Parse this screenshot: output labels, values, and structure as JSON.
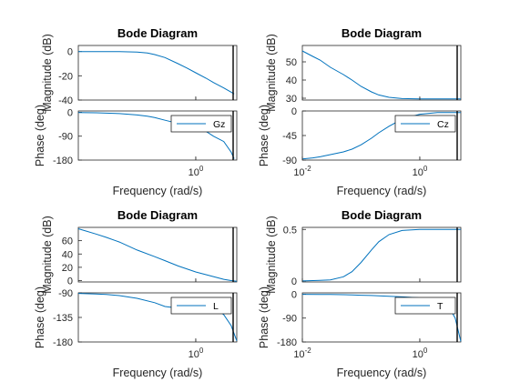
{
  "colors": {
    "line": "#0072BD",
    "axis": "#262626",
    "bg": "#ffffff"
  },
  "chart_data": [
    {
      "type": "line",
      "title": "Bode Diagram",
      "xlabel": "Frequency  (rad/s)",
      "xscale": "log",
      "xlim": [
        0.01,
        5
      ],
      "x_ticks": [],
      "x_tick_labels": [],
      "minor_ticks": [
        1
      ],
      "mag_label": "Magnitude (dB)",
      "phase_label": "Phase (deg)",
      "mag_ylim": [
        -40,
        5
      ],
      "mag_ticks": [
        0,
        -20,
        -40
      ],
      "mag_tick_labels": [
        "0",
        "-20",
        "-40"
      ],
      "phase_ylim": [
        -180,
        5
      ],
      "phase_ticks": [
        0,
        -90,
        -180
      ],
      "phase_tick_labels": [
        "0",
        "-90",
        "-180"
      ],
      "legend": "Gz",
      "legend_pos": "top-right",
      "x": [
        0.01,
        0.02,
        0.05,
        0.1,
        0.15,
        0.2,
        0.3,
        0.5,
        0.7,
        1,
        1.5,
        2,
        3,
        4,
        4.5
      ],
      "magnitude_db": [
        0,
        0,
        -0.1,
        -0.5,
        -1.2,
        -2.5,
        -5,
        -10,
        -13.5,
        -17.5,
        -22,
        -25.5,
        -30,
        -33.5,
        -35
      ],
      "phase_deg": [
        -1,
        -2,
        -5,
        -10,
        -15,
        -20,
        -30,
        -42,
        -52,
        -60,
        -72,
        -90,
        -110,
        -150,
        -175
      ]
    },
    {
      "type": "line",
      "title": "Bode Diagram",
      "xlabel": "Frequency  (rad/s)",
      "xscale": "log",
      "xlim": [
        0.01,
        5
      ],
      "x_ticks": [],
      "x_tick_labels": [],
      "minor_ticks": [
        1
      ],
      "mag_label": "Magnitude (dB)",
      "phase_label": "Phase (deg)",
      "mag_ylim": [
        29,
        59
      ],
      "mag_ticks": [
        50,
        40,
        30
      ],
      "mag_tick_labels": [
        "50",
        "40",
        "30"
      ],
      "phase_ylim": [
        -90,
        0
      ],
      "phase_ticks": [
        0,
        -45,
        -90
      ],
      "phase_tick_labels": [
        "0",
        "-45",
        "-90"
      ],
      "legend": "Cz",
      "legend_pos": "top-right",
      "x": [
        0.01,
        0.015,
        0.02,
        0.03,
        0.05,
        0.07,
        0.1,
        0.15,
        0.2,
        0.3,
        0.5,
        1,
        2,
        5
      ],
      "magnitude_db": [
        56,
        53,
        51,
        47,
        43,
        40,
        36.5,
        33.5,
        31.8,
        30.5,
        29.8,
        29.6,
        29.6,
        29.6
      ],
      "phase_deg": [
        -88,
        -86,
        -84,
        -80,
        -75,
        -70,
        -62,
        -50,
        -40,
        -28,
        -15,
        -6,
        -3,
        -3
      ]
    },
    {
      "type": "line",
      "title": "Bode Diagram",
      "xlabel": "Frequency  (rad/s)",
      "xscale": "log",
      "xlim": [
        0.01,
        5
      ],
      "x_ticks": [],
      "x_tick_labels": [],
      "minor_ticks": [
        1
      ],
      "mag_label": "Magnitude (dB)",
      "phase_label": "Phase (deg)",
      "mag_ylim": [
        -2,
        80
      ],
      "mag_ticks": [
        60,
        40,
        20,
        0
      ],
      "mag_tick_labels": [
        "60",
        "40",
        "20",
        "0"
      ],
      "phase_ylim": [
        -180,
        -90
      ],
      "phase_ticks": [
        -90,
        -135,
        -180
      ],
      "phase_tick_labels": [
        "-90",
        "-135",
        "-180"
      ],
      "legend": "L",
      "legend_pos": "top-right",
      "x": [
        0.01,
        0.02,
        0.03,
        0.05,
        0.1,
        0.2,
        0.3,
        0.5,
        1,
        2,
        3,
        4,
        5
      ],
      "magnitude_db": [
        78,
        70,
        65,
        58,
        46,
        36,
        30,
        22,
        13,
        6,
        2,
        0,
        -1
      ],
      "phase_deg": [
        -91,
        -92,
        -93,
        -95,
        -100,
        -108,
        -115,
        -118,
        -112,
        -115,
        -130,
        -150,
        -178
      ]
    },
    {
      "type": "line",
      "title": "Bode Diagram",
      "xlabel": "Frequency  (rad/s)",
      "xscale": "log",
      "xlim": [
        0.01,
        5
      ],
      "x_ticks": [],
      "x_tick_labels": [],
      "minor_ticks": [
        1
      ],
      "mag_label": "Magnitude (dB)",
      "phase_label": "Phase (deg)",
      "mag_ylim": [
        -0.01,
        0.52
      ],
      "mag_ticks": [
        0.5,
        0
      ],
      "mag_tick_labels": [
        "0.5",
        "0"
      ],
      "phase_ylim": [
        -180,
        5
      ],
      "phase_ticks": [
        0,
        -90,
        -180
      ],
      "phase_tick_labels": [
        "0",
        "-90",
        "-180"
      ],
      "legend": "T",
      "legend_pos": "top-right",
      "x": [
        0.01,
        0.02,
        0.03,
        0.05,
        0.07,
        0.1,
        0.15,
        0.2,
        0.3,
        0.5,
        1,
        2,
        3,
        4,
        5
      ],
      "magnitude_db": [
        0,
        0.005,
        0.01,
        0.04,
        0.09,
        0.18,
        0.3,
        0.38,
        0.45,
        0.49,
        0.5,
        0.5,
        0.5,
        0.5,
        0.5
      ],
      "phase_deg": [
        -0.5,
        -1,
        -1,
        -2,
        -3,
        -4,
        -5,
        -6,
        -8,
        -10,
        -14,
        -20,
        -40,
        -90,
        -178
      ]
    }
  ]
}
